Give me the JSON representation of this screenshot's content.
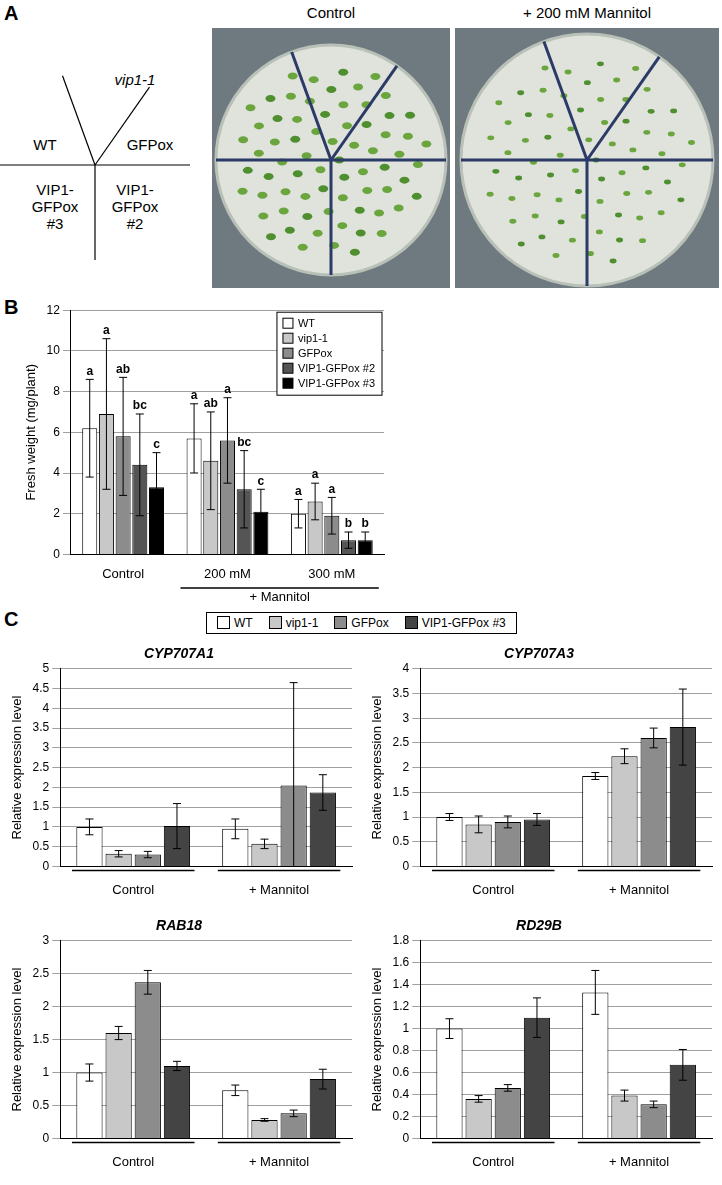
{
  "panel_labels": [
    "A",
    "B",
    "C"
  ],
  "panel_a": {
    "column_titles": [
      "Control",
      "+ 200 mM Mannitol"
    ],
    "plate_sectors": [
      "vip1-1",
      "WT",
      "GFPox",
      "VIP1-GFPox #3",
      "VIP1-GFPox #2"
    ]
  },
  "chart_data": [
    {
      "type": "bar",
      "y_label": "Fresh weight (mg/plant)",
      "categories": [
        "Control",
        "200 mM",
        "300 mM"
      ],
      "category_groups": [
        {
          "label": "+ Mannitol",
          "categories": [
            "200 mM",
            "300 mM"
          ]
        }
      ],
      "ylim": [
        0,
        12
      ],
      "yticks": [
        0,
        2,
        4,
        6,
        8,
        10,
        12
      ],
      "grid": true,
      "legend": "top-right",
      "series": [
        {
          "name": "WT",
          "color": "#ffffff",
          "values": [
            6.2,
            5.7,
            2.0
          ],
          "errors": [
            2.4,
            1.7,
            0.7
          ],
          "significance": [
            "a",
            "a",
            "a"
          ]
        },
        {
          "name": "vip1-1",
          "color": "#c8c8c8",
          "values": [
            6.9,
            4.6,
            2.6
          ],
          "errors": [
            3.7,
            2.4,
            0.9
          ],
          "significance": [
            "a",
            "ab",
            "a"
          ]
        },
        {
          "name": "GFPox",
          "color": "#8c8c8c",
          "values": [
            5.8,
            5.6,
            1.9
          ],
          "errors": [
            2.9,
            2.1,
            0.9
          ],
          "significance": [
            "ab",
            "a",
            "a"
          ]
        },
        {
          "name": "VIP1-GFPox #2",
          "color": "#555555",
          "values": [
            4.4,
            3.2,
            0.7
          ],
          "errors": [
            2.5,
            1.9,
            0.4
          ],
          "significance": [
            "bc",
            "bc",
            "b"
          ]
        },
        {
          "name": "VIP1-GFPox #3",
          "color": "#000000",
          "values": [
            3.3,
            2.1,
            0.7
          ],
          "errors": [
            1.7,
            1.1,
            0.4
          ],
          "significance": [
            "c",
            "c",
            "b"
          ]
        }
      ]
    },
    {
      "type": "bar",
      "title": "CYP707A1",
      "y_label": "Relative expression level",
      "categories": [
        "Control",
        "+ Mannitol"
      ],
      "ylim": [
        0,
        5
      ],
      "yticks": [
        0,
        0.5,
        1,
        1.5,
        2,
        2.5,
        3,
        3.5,
        4,
        4.5,
        5
      ],
      "grid": true,
      "legend": "top",
      "series": [
        {
          "name": "WT",
          "color": "#ffffff",
          "values": [
            1.0,
            0.95
          ],
          "errors": [
            0.2,
            0.25
          ]
        },
        {
          "name": "vip1-1",
          "color": "#c8c8c8",
          "values": [
            0.32,
            0.57
          ],
          "errors": [
            0.08,
            0.12
          ]
        },
        {
          "name": "GFPox",
          "color": "#8c8c8c",
          "values": [
            0.3,
            2.05
          ],
          "errors": [
            0.08,
            2.6
          ]
        },
        {
          "name": "VIP1-GFPox #3",
          "color": "#444444",
          "values": [
            1.02,
            1.87
          ],
          "errors": [
            0.57,
            0.45
          ]
        }
      ]
    },
    {
      "type": "bar",
      "title": "CYP707A3",
      "y_label": "Relative expression level",
      "categories": [
        "Control",
        "+ Mannitol"
      ],
      "ylim": [
        0,
        4
      ],
      "yticks": [
        0,
        0.5,
        1,
        1.5,
        2,
        2.5,
        3,
        3.5,
        4
      ],
      "grid": true,
      "legend": false,
      "series": [
        {
          "name": "WT",
          "color": "#ffffff",
          "values": [
            1.0,
            1.83
          ],
          "errors": [
            0.07,
            0.07
          ]
        },
        {
          "name": "vip1-1",
          "color": "#c8c8c8",
          "values": [
            0.85,
            2.23
          ],
          "errors": [
            0.17,
            0.15
          ]
        },
        {
          "name": "GFPox",
          "color": "#8c8c8c",
          "values": [
            0.9,
            2.6
          ],
          "errors": [
            0.12,
            0.2
          ]
        },
        {
          "name": "VIP1-GFPox #3",
          "color": "#444444",
          "values": [
            0.95,
            2.82
          ],
          "errors": [
            0.12,
            0.77
          ]
        }
      ]
    },
    {
      "type": "bar",
      "title": "RAB18",
      "y_label": "Relative expression level",
      "categories": [
        "Control",
        "+ Mannitol"
      ],
      "ylim": [
        0,
        3
      ],
      "yticks": [
        0,
        0.5,
        1,
        1.5,
        2,
        2.5,
        3
      ],
      "grid": true,
      "legend": false,
      "series": [
        {
          "name": "WT",
          "color": "#ffffff",
          "values": [
            1.0,
            0.73
          ],
          "errors": [
            0.13,
            0.08
          ]
        },
        {
          "name": "vip1-1",
          "color": "#c8c8c8",
          "values": [
            1.6,
            0.28
          ],
          "errors": [
            0.1,
            0.02
          ]
        },
        {
          "name": "GFPox",
          "color": "#8c8c8c",
          "values": [
            2.37,
            0.38
          ],
          "errors": [
            0.18,
            0.05
          ]
        },
        {
          "name": "VIP1-GFPox #3",
          "color": "#444444",
          "values": [
            1.1,
            0.9
          ],
          "errors": [
            0.07,
            0.15
          ]
        }
      ]
    },
    {
      "type": "bar",
      "title": "RD29B",
      "y_label": "Relative expression level",
      "categories": [
        "Control",
        "+ Mannitol"
      ],
      "ylim": [
        0,
        1.8
      ],
      "yticks": [
        0,
        0.2,
        0.4,
        0.6,
        0.8,
        1,
        1.2,
        1.4,
        1.6,
        1.8
      ],
      "grid": true,
      "legend": false,
      "series": [
        {
          "name": "WT",
          "color": "#ffffff",
          "values": [
            1.0,
            1.33
          ],
          "errors": [
            0.09,
            0.2
          ]
        },
        {
          "name": "vip1-1",
          "color": "#c8c8c8",
          "values": [
            0.36,
            0.39
          ],
          "errors": [
            0.03,
            0.05
          ]
        },
        {
          "name": "GFPox",
          "color": "#8c8c8c",
          "values": [
            0.46,
            0.31
          ],
          "errors": [
            0.03,
            0.03
          ]
        },
        {
          "name": "VIP1-GFPox #3",
          "color": "#444444",
          "values": [
            1.1,
            0.67
          ],
          "errors": [
            0.18,
            0.14
          ]
        }
      ]
    }
  ]
}
